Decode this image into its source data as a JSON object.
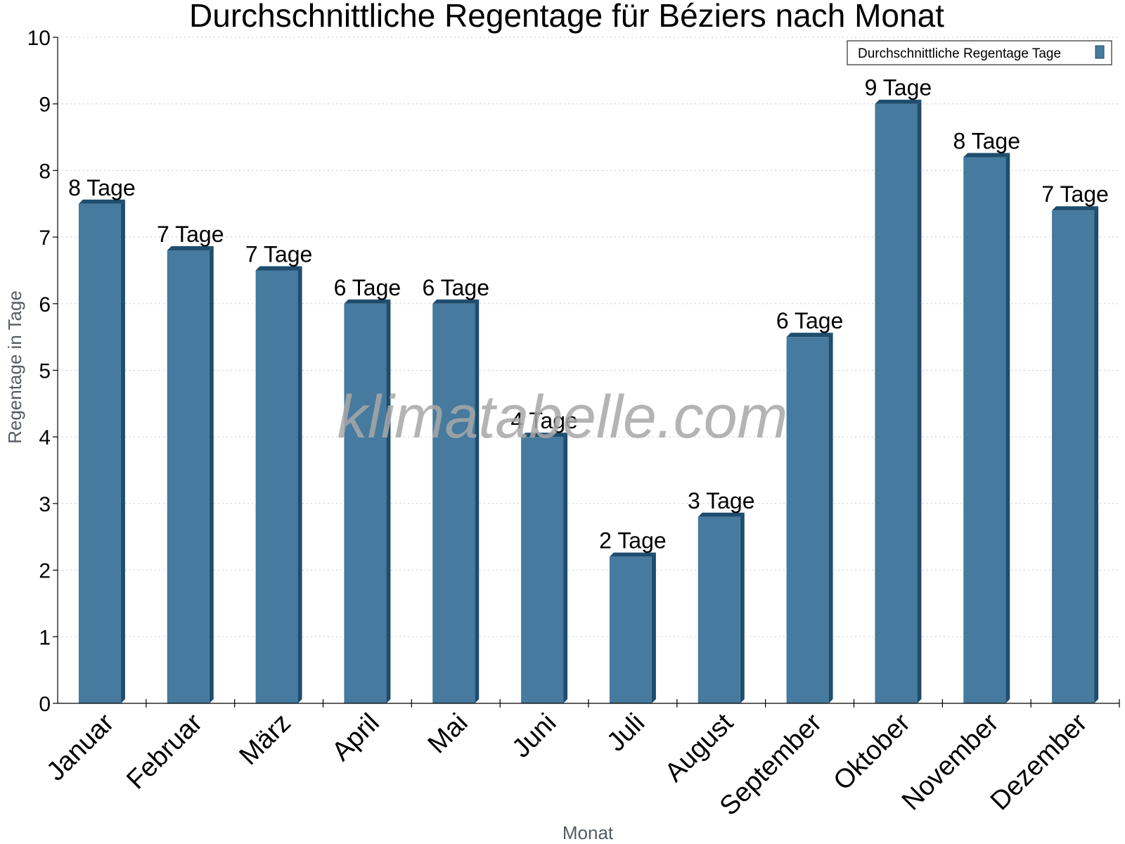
{
  "chart_data": {
    "type": "bar",
    "title": "Durchschnittliche Regentage für Béziers nach Monat",
    "xlabel": "Monat",
    "ylabel": "Regentage in Tage",
    "ylim": [
      0,
      10
    ],
    "yticks": [
      0,
      1,
      2,
      3,
      4,
      5,
      6,
      7,
      8,
      9,
      10
    ],
    "grid": true,
    "legend_position": "top-right",
    "categories": [
      "Januar",
      "Februar",
      "März",
      "April",
      "Mai",
      "Juni",
      "Juli",
      "August",
      "September",
      "Oktober",
      "November",
      "Dezember"
    ],
    "series": [
      {
        "name": "Durchschnittliche Regentage Tage",
        "values": [
          7.5,
          6.8,
          6.5,
          6.0,
          6.0,
          4.0,
          2.2,
          2.8,
          5.5,
          9.0,
          8.2,
          7.4
        ],
        "labels": [
          "8 Tage",
          "7 Tage",
          "7 Tage",
          "6 Tage",
          "6 Tage",
          "4 Tage",
          "2 Tage",
          "3 Tage",
          "6 Tage",
          "9 Tage",
          "8 Tage",
          "7 Tage"
        ],
        "color": "#467a9e",
        "shade_color": "#1e4d6e"
      }
    ]
  },
  "watermark": "klimatabelle.com"
}
